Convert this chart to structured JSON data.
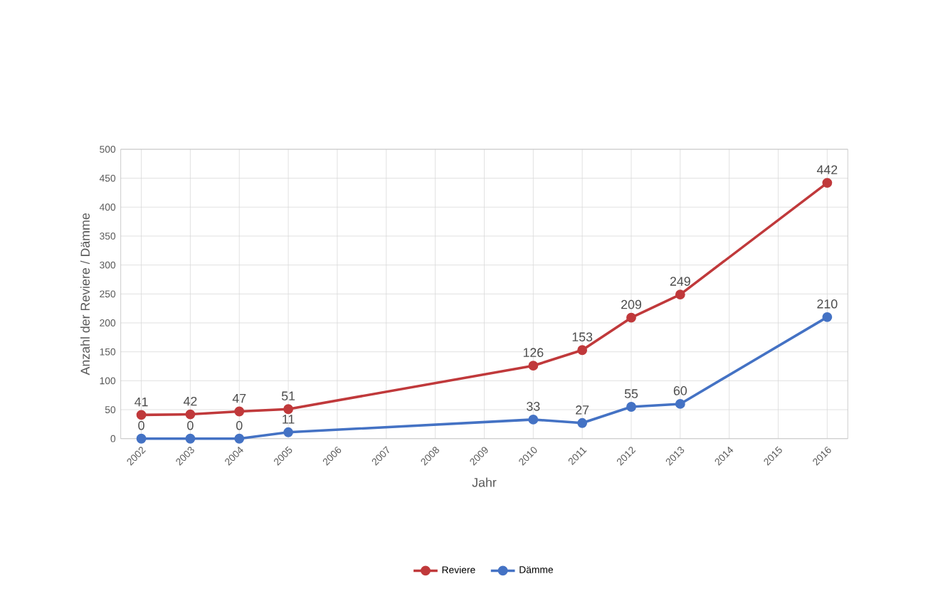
{
  "chart_data": {
    "type": "line",
    "xlabel": "Jahr",
    "ylabel": "Anzahl der Reviere / Dämme",
    "series": [
      {
        "name": "Reviere",
        "color": "#c0393b",
        "x": [
          2002,
          2003,
          2004,
          2005,
          2010,
          2011,
          2012,
          2013,
          2016
        ],
        "values": [
          41,
          42,
          47,
          51,
          126,
          153,
          209,
          249,
          442
        ]
      },
      {
        "name": "Dämme",
        "color": "#4472c4",
        "x": [
          2002,
          2003,
          2004,
          2005,
          2010,
          2011,
          2012,
          2013,
          2016
        ],
        "values": [
          0,
          0,
          0,
          11,
          33,
          27,
          55,
          60,
          210
        ]
      }
    ],
    "data_labels": true,
    "xlim": [
      2002,
      2016
    ],
    "xticks": [
      2002,
      2003,
      2004,
      2005,
      2006,
      2007,
      2008,
      2009,
      2010,
      2011,
      2012,
      2013,
      2014,
      2015,
      2016
    ],
    "ylim": [
      0,
      500
    ],
    "yticks": [
      0,
      50,
      100,
      150,
      200,
      250,
      300,
      350,
      400,
      450,
      500
    ],
    "grid": true,
    "legend": "bottom",
    "marker": "circle",
    "line_style": "solid"
  }
}
